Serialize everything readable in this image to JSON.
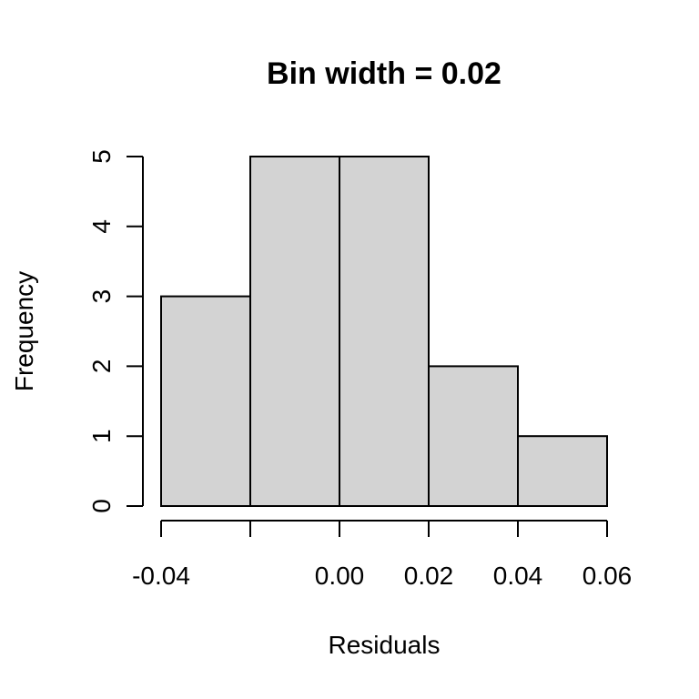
{
  "chart_data": {
    "type": "bar",
    "title": "Bin width = 0.02",
    "xlabel": "Residuals",
    "ylabel": "Frequency",
    "bins": [
      {
        "start": -0.04,
        "end": -0.02,
        "count": 3
      },
      {
        "start": -0.02,
        "end": 0.0,
        "count": 5
      },
      {
        "start": 0.0,
        "end": 0.02,
        "count": 5
      },
      {
        "start": 0.02,
        "end": 0.04,
        "count": 2
      },
      {
        "start": 0.04,
        "end": 0.06,
        "count": 1
      }
    ],
    "x_ticks": [
      -0.04,
      -0.02,
      0.0,
      0.02,
      0.04,
      0.06
    ],
    "x_tick_labels": [
      "-0.04",
      "",
      "0.00",
      "0.02",
      "0.04",
      "0.06"
    ],
    "y_ticks": [
      0,
      1,
      2,
      3,
      4,
      5
    ],
    "y_tick_labels": [
      "0",
      "1",
      "2",
      "3",
      "4",
      "5"
    ],
    "xlim": [
      -0.04,
      0.06
    ],
    "ylim": [
      0,
      5
    ],
    "grid": false,
    "legend": "none",
    "bar_fill": "#d3d3d3",
    "bar_stroke": "#000000"
  }
}
